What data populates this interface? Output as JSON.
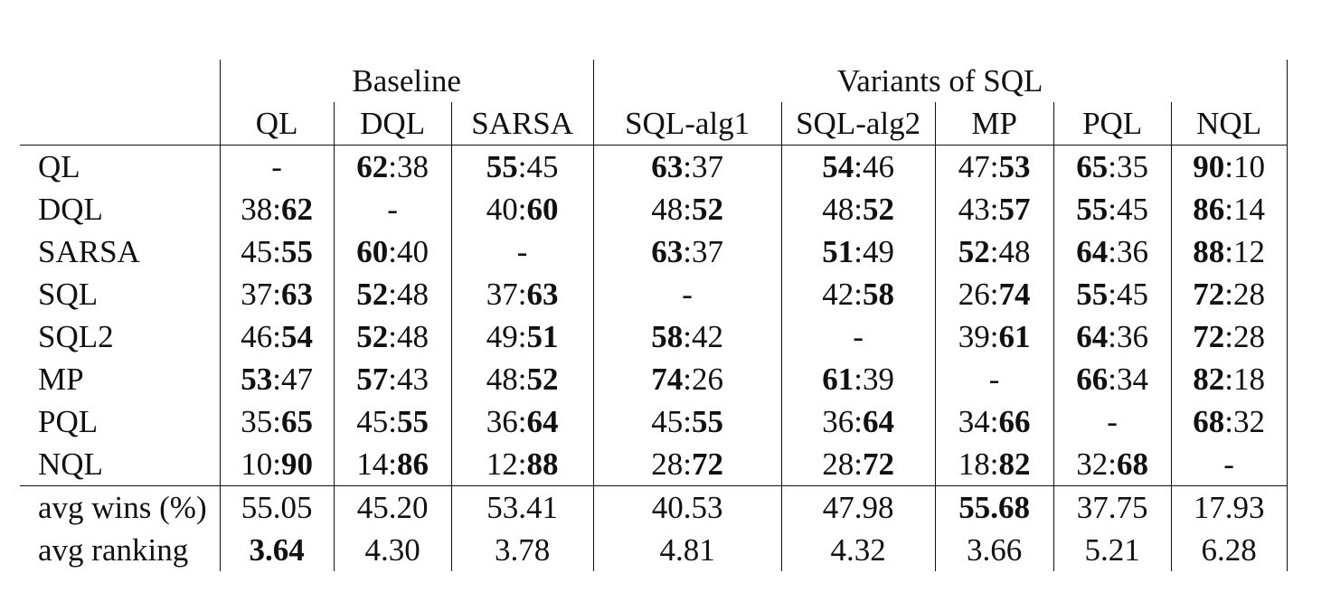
{
  "table": {
    "groups": [
      {
        "label": "Baseline",
        "span": 3
      },
      {
        "label": "Variants of SQL",
        "span": 5
      }
    ],
    "columns": [
      "QL",
      "DQL",
      "SARSA",
      "SQL-alg1",
      "SQL-alg2",
      "MP",
      "PQL",
      "NQL"
    ],
    "rows": [
      {
        "label": "QL",
        "cells": [
          {
            "text": "-"
          },
          {
            "a": "62",
            "b": "38",
            "bold": "a"
          },
          {
            "a": "55",
            "b": "45",
            "bold": "a"
          },
          {
            "a": "63",
            "b": "37",
            "bold": "a"
          },
          {
            "a": "54",
            "b": "46",
            "bold": "a"
          },
          {
            "a": "47",
            "b": "53",
            "bold": "b"
          },
          {
            "a": "65",
            "b": "35",
            "bold": "a"
          },
          {
            "a": "90",
            "b": "10",
            "bold": "a"
          }
        ]
      },
      {
        "label": "DQL",
        "cells": [
          {
            "a": "38",
            "b": "62",
            "bold": "b"
          },
          {
            "text": "-"
          },
          {
            "a": "40",
            "b": "60",
            "bold": "b"
          },
          {
            "a": "48",
            "b": "52",
            "bold": "b"
          },
          {
            "a": "48",
            "b": "52",
            "bold": "b"
          },
          {
            "a": "43",
            "b": "57",
            "bold": "b"
          },
          {
            "a": "55",
            "b": "45",
            "bold": "a"
          },
          {
            "a": "86",
            "b": "14",
            "bold": "a"
          }
        ]
      },
      {
        "label": "SARSA",
        "cells": [
          {
            "a": "45",
            "b": "55",
            "bold": "b"
          },
          {
            "a": "60",
            "b": "40",
            "bold": "a"
          },
          {
            "text": "-"
          },
          {
            "a": "63",
            "b": "37",
            "bold": "a"
          },
          {
            "a": "51",
            "b": "49",
            "bold": "a"
          },
          {
            "a": "52",
            "b": "48",
            "bold": "a"
          },
          {
            "a": "64",
            "b": "36",
            "bold": "a"
          },
          {
            "a": "88",
            "b": "12",
            "bold": "a"
          }
        ]
      },
      {
        "label": "SQL",
        "cells": [
          {
            "a": "37",
            "b": "63",
            "bold": "b"
          },
          {
            "a": "52",
            "b": "48",
            "bold": "a"
          },
          {
            "a": "37",
            "b": "63",
            "bold": "b"
          },
          {
            "text": "-"
          },
          {
            "a": "42",
            "b": "58",
            "bold": "b"
          },
          {
            "a": "26",
            "b": "74",
            "bold": "b"
          },
          {
            "a": "55",
            "b": "45",
            "bold": "a"
          },
          {
            "a": "72",
            "b": "28",
            "bold": "a"
          }
        ]
      },
      {
        "label": "SQL2",
        "cells": [
          {
            "a": "46",
            "b": "54",
            "bold": "b"
          },
          {
            "a": "52",
            "b": "48",
            "bold": "a"
          },
          {
            "a": "49",
            "b": "51",
            "bold": "b"
          },
          {
            "a": "58",
            "b": "42",
            "bold": "a"
          },
          {
            "text": "-"
          },
          {
            "a": "39",
            "b": "61",
            "bold": "b"
          },
          {
            "a": "64",
            "b": "36",
            "bold": "a"
          },
          {
            "a": "72",
            "b": "28",
            "bold": "a"
          }
        ]
      },
      {
        "label": "MP",
        "cells": [
          {
            "a": "53",
            "b": "47",
            "bold": "a"
          },
          {
            "a": "57",
            "b": "43",
            "bold": "a"
          },
          {
            "a": "48",
            "b": "52",
            "bold": "b"
          },
          {
            "a": "74",
            "b": "26",
            "bold": "a"
          },
          {
            "a": "61",
            "b": "39",
            "bold": "a"
          },
          {
            "text": "-"
          },
          {
            "a": "66",
            "b": "34",
            "bold": "a"
          },
          {
            "a": "82",
            "b": "18",
            "bold": "a"
          }
        ]
      },
      {
        "label": "PQL",
        "cells": [
          {
            "a": "35",
            "b": "65",
            "bold": "b"
          },
          {
            "a": "45",
            "b": "55",
            "bold": "b"
          },
          {
            "a": "36",
            "b": "64",
            "bold": "b"
          },
          {
            "a": "45",
            "b": "55",
            "bold": "b"
          },
          {
            "a": "36",
            "b": "64",
            "bold": "b"
          },
          {
            "a": "34",
            "b": "66",
            "bold": "b"
          },
          {
            "text": "-"
          },
          {
            "a": "68",
            "b": "32",
            "bold": "a"
          }
        ]
      },
      {
        "label": "NQL",
        "cells": [
          {
            "a": "10",
            "b": "90",
            "bold": "b"
          },
          {
            "a": "14",
            "b": "86",
            "bold": "b"
          },
          {
            "a": "12",
            "b": "88",
            "bold": "b"
          },
          {
            "a": "28",
            "b": "72",
            "bold": "b"
          },
          {
            "a": "28",
            "b": "72",
            "bold": "b"
          },
          {
            "a": "18",
            "b": "82",
            "bold": "b"
          },
          {
            "a": "32",
            "b": "68",
            "bold": "b"
          },
          {
            "text": "-"
          }
        ]
      }
    ],
    "summary": [
      {
        "label": "avg wins (%)",
        "cells": [
          {
            "text": "55.05"
          },
          {
            "text": "45.20"
          },
          {
            "text": "53.41"
          },
          {
            "text": "40.53"
          },
          {
            "text": "47.98"
          },
          {
            "text": "55.68",
            "bold": "all"
          },
          {
            "text": "37.75"
          },
          {
            "text": "17.93"
          }
        ]
      },
      {
        "label": "avg ranking",
        "cells": [
          {
            "text": "3.64",
            "bold": "all"
          },
          {
            "text": "4.30"
          },
          {
            "text": "3.78"
          },
          {
            "text": "4.81"
          },
          {
            "text": "4.32"
          },
          {
            "text": "3.66"
          },
          {
            "text": "5.21"
          },
          {
            "text": "6.28"
          }
        ]
      }
    ]
  }
}
